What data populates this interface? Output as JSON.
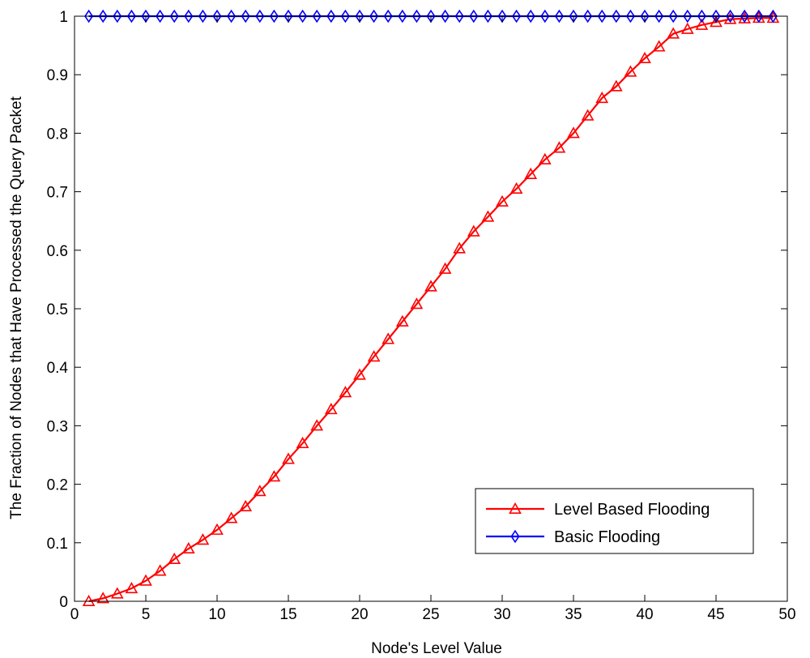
{
  "chart_data": {
    "type": "line",
    "title": "",
    "xlabel": "Node's Level Value",
    "ylabel": "The Fraction of Nodes that Have Processed the Query Packet",
    "xlim": [
      0,
      50
    ],
    "ylim": [
      0,
      1
    ],
    "xticks": [
      0,
      5,
      10,
      15,
      20,
      25,
      30,
      35,
      40,
      45,
      50
    ],
    "yticks": [
      0,
      0.1,
      0.2,
      0.3,
      0.4,
      0.5,
      0.6,
      0.7,
      0.8,
      0.9,
      1
    ],
    "xtick_labels": [
      "0",
      "5",
      "10",
      "15",
      "20",
      "25",
      "30",
      "35",
      "40",
      "45",
      "50"
    ],
    "ytick_labels": [
      "0",
      "0.1",
      "0.2",
      "0.3",
      "0.4",
      "0.5",
      "0.6",
      "0.7",
      "0.8",
      "0.9",
      "1"
    ],
    "grid": false,
    "legend_position": "bottom-right",
    "x": [
      1,
      2,
      3,
      4,
      5,
      6,
      7,
      8,
      9,
      10,
      11,
      12,
      13,
      14,
      15,
      16,
      17,
      18,
      19,
      20,
      21,
      22,
      23,
      24,
      25,
      26,
      27,
      28,
      29,
      30,
      31,
      32,
      33,
      34,
      35,
      36,
      37,
      38,
      39,
      40,
      41,
      42,
      43,
      44,
      45,
      46,
      47,
      48,
      49
    ],
    "series": [
      {
        "name": "Level Based Flooding",
        "color": "#ff0000",
        "marker": "triangle",
        "values": [
          0.0,
          0.005,
          0.013,
          0.022,
          0.035,
          0.052,
          0.072,
          0.09,
          0.105,
          0.122,
          0.142,
          0.162,
          0.188,
          0.213,
          0.243,
          0.27,
          0.3,
          0.328,
          0.357,
          0.387,
          0.418,
          0.448,
          0.478,
          0.508,
          0.538,
          0.568,
          0.603,
          0.632,
          0.657,
          0.683,
          0.705,
          0.73,
          0.755,
          0.775,
          0.8,
          0.83,
          0.86,
          0.88,
          0.905,
          0.928,
          0.948,
          0.97,
          0.978,
          0.985,
          0.99,
          0.995,
          0.996,
          0.997,
          0.997
        ]
      },
      {
        "name": "Basic Flooding",
        "color": "#0000ff",
        "marker": "diamond",
        "values": [
          1,
          1,
          1,
          1,
          1,
          1,
          1,
          1,
          1,
          1,
          1,
          1,
          1,
          1,
          1,
          1,
          1,
          1,
          1,
          1,
          1,
          1,
          1,
          1,
          1,
          1,
          1,
          1,
          1,
          1,
          1,
          1,
          1,
          1,
          1,
          1,
          1,
          1,
          1,
          1,
          1,
          1,
          1,
          1,
          1,
          1,
          1,
          1,
          1
        ]
      }
    ]
  }
}
